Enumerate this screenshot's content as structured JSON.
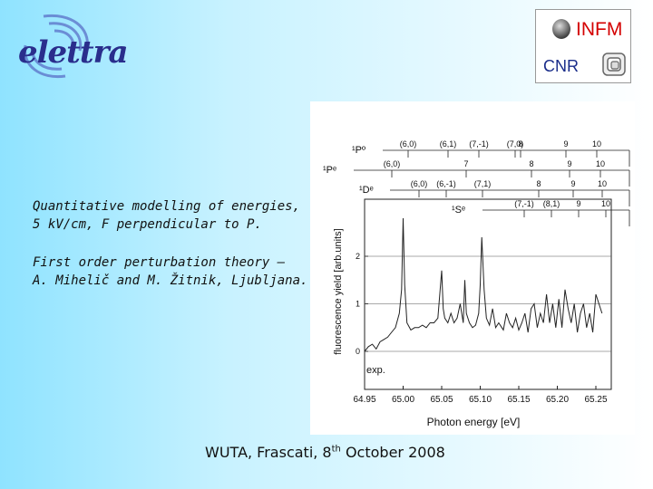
{
  "logo": {
    "text": "elettra"
  },
  "institutions": {
    "infm": "INFM",
    "cnr": "CNR"
  },
  "description": {
    "line1": "Quantitative modelling of energies,",
    "line2": "5 kV/cm, F perpendicular to P.",
    "line3": "First order perturbation theory –",
    "line4": "A. Mihelič and M. Žitnik, Ljubljana."
  },
  "footer": {
    "prefix": "WUTA, Frascati, 8",
    "sup": "th",
    "suffix": " October 2008"
  },
  "chart_data": {
    "type": "line",
    "xlabel": "Photon energy [eV]",
    "ylabel": "fluorescence yield [arb.units]",
    "x_ticks": [
      "64.95",
      "65.00",
      "65.05",
      "65.10",
      "65.15",
      "65.20",
      "65.25"
    ],
    "y_ticks": [
      "0",
      "1",
      "2"
    ],
    "xlim": [
      64.95,
      65.27
    ],
    "ylim": [
      -0.8,
      3.2
    ],
    "series_label": "exp.",
    "series": [
      {
        "x": [
          64.95,
          64.955,
          64.96,
          64.965,
          64.97,
          64.975,
          64.98,
          64.985,
          64.99,
          64.995,
          64.998,
          65.0,
          65.002,
          65.005,
          65.01,
          65.015,
          65.02,
          65.025,
          65.03,
          65.035,
          65.04,
          65.045,
          65.05,
          65.052,
          65.054,
          65.058,
          65.062,
          65.066,
          65.07,
          65.074,
          65.078,
          65.08,
          65.082,
          65.086,
          65.09,
          65.094,
          65.098,
          65.1,
          65.102,
          65.105,
          65.108,
          65.112,
          65.116,
          65.12,
          65.124,
          65.128,
          65.13,
          65.134,
          65.138,
          65.142,
          65.146,
          65.15,
          65.154,
          65.158,
          65.162,
          65.166,
          65.17,
          65.174,
          65.178,
          65.182,
          65.186,
          65.19,
          65.194,
          65.198,
          65.202,
          65.206,
          65.21,
          65.214,
          65.218,
          65.222,
          65.226,
          65.23,
          65.234,
          65.238,
          65.242,
          65.246,
          65.25,
          65.254,
          65.258
        ],
        "y": [
          0.0,
          0.1,
          0.15,
          0.05,
          0.2,
          0.25,
          0.3,
          0.4,
          0.5,
          0.8,
          1.3,
          2.8,
          1.4,
          0.6,
          0.45,
          0.5,
          0.5,
          0.55,
          0.5,
          0.6,
          0.6,
          0.7,
          1.7,
          0.9,
          0.7,
          0.6,
          0.8,
          0.6,
          0.7,
          1.0,
          0.6,
          1.5,
          0.8,
          0.6,
          0.5,
          0.55,
          0.8,
          1.4,
          2.4,
          1.3,
          0.7,
          0.55,
          0.9,
          0.5,
          0.6,
          0.5,
          0.45,
          0.8,
          0.6,
          0.5,
          0.7,
          0.45,
          0.6,
          0.8,
          0.4,
          0.9,
          1.0,
          0.5,
          0.8,
          0.6,
          1.2,
          0.6,
          1.0,
          0.5,
          1.1,
          0.5,
          1.3,
          0.9,
          0.6,
          1.0,
          0.4,
          0.8,
          1.0,
          0.5,
          0.8,
          0.4,
          1.2,
          1.0,
          0.8
        ]
      }
    ],
    "states": [
      {
        "label": "¹Pº",
        "markers": [
          "(6,0)",
          "(6,1)",
          "(7,-1)",
          "(7,0)",
          "8",
          "9",
          "10"
        ]
      },
      {
        "label": "¹Pᵉ",
        "markers": [
          "(6,0)",
          "7",
          "8",
          "9",
          "10"
        ]
      },
      {
        "label": "¹Dᵉ",
        "markers": [
          "(6,0)",
          "(6,-1)",
          "(7,1)",
          "8",
          "9",
          "10"
        ]
      },
      {
        "label": "¹Sᵉ",
        "markers": [
          "(7,-1)",
          "(8,1)",
          "9",
          "10"
        ]
      }
    ]
  }
}
